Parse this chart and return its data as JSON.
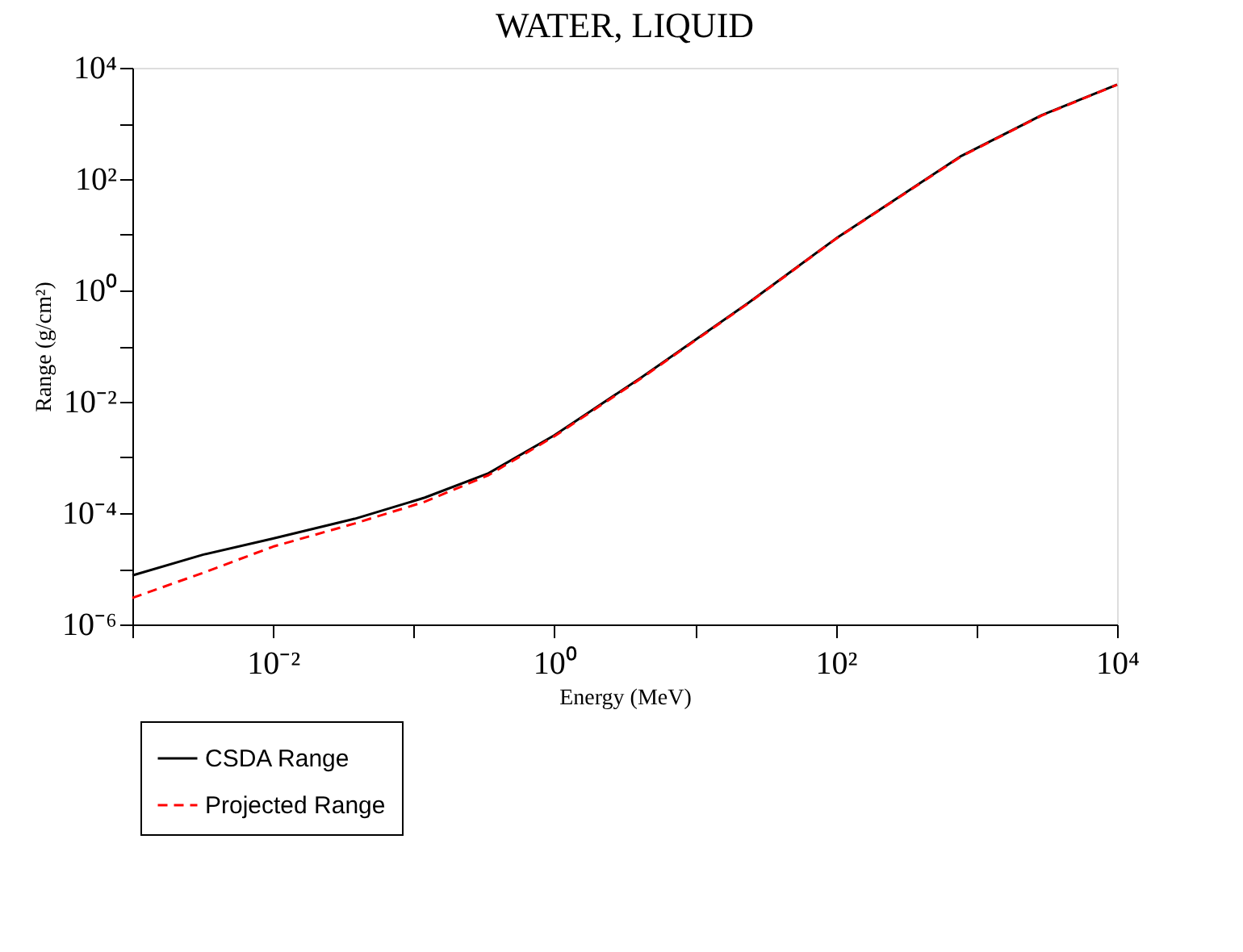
{
  "chart_data": {
    "type": "line",
    "title": "WATER, LIQUID",
    "xlabel": "Energy (MeV)",
    "ylabel": "Range (g/cm²)",
    "x": [
      0.001,
      0.0032,
      0.01,
      0.038,
      0.12,
      0.34,
      1,
      4.2,
      24,
      100,
      780,
      2900,
      10000
    ],
    "series": [
      {
        "name": "CSDA Range",
        "color": "#000000",
        "line_style": "solid",
        "values": [
          7.6e-06,
          1.8e-05,
          3.5e-05,
          7.9e-05,
          0.00019,
          0.00052,
          0.0025,
          0.028,
          0.6,
          8.5,
          260,
          1400,
          5000
        ]
      },
      {
        "name": "Projected Range",
        "color": "#ff0000",
        "line_style": "dashed",
        "values": [
          3e-06,
          8.5e-06,
          2.5e-05,
          6.5e-05,
          0.00016,
          0.00048,
          0.0024,
          0.027,
          0.59,
          8.4,
          255,
          1380,
          4950
        ]
      }
    ],
    "log": "xy",
    "xlim": [
      0.001,
      10000
    ],
    "ylim": [
      1e-06,
      10000
    ],
    "xticks": [
      {
        "value": 0.001,
        "label": null
      },
      {
        "value": 0.01,
        "label": "10⁻²"
      },
      {
        "value": 0.1,
        "label": null
      },
      {
        "value": 1,
        "label": "10⁰"
      },
      {
        "value": 10,
        "label": null
      },
      {
        "value": 100,
        "label": "10²"
      },
      {
        "value": 1000,
        "label": null
      },
      {
        "value": 10000,
        "label": "10⁴"
      }
    ],
    "yticks": [
      {
        "value": 1e-06,
        "label": "10⁻⁶"
      },
      {
        "value": 1e-05,
        "label": null
      },
      {
        "value": 0.0001,
        "label": "10⁻⁴"
      },
      {
        "value": 0.001,
        "label": null
      },
      {
        "value": 0.01,
        "label": "10⁻²"
      },
      {
        "value": 0.1,
        "label": null
      },
      {
        "value": 1,
        "label": "10⁰"
      },
      {
        "value": 10,
        "label": null
      },
      {
        "value": 100,
        "label": "10²"
      },
      {
        "value": 1000,
        "label": null
      },
      {
        "value": 10000,
        "label": "10⁴"
      }
    ],
    "grid": false,
    "legend": "bottom left"
  }
}
